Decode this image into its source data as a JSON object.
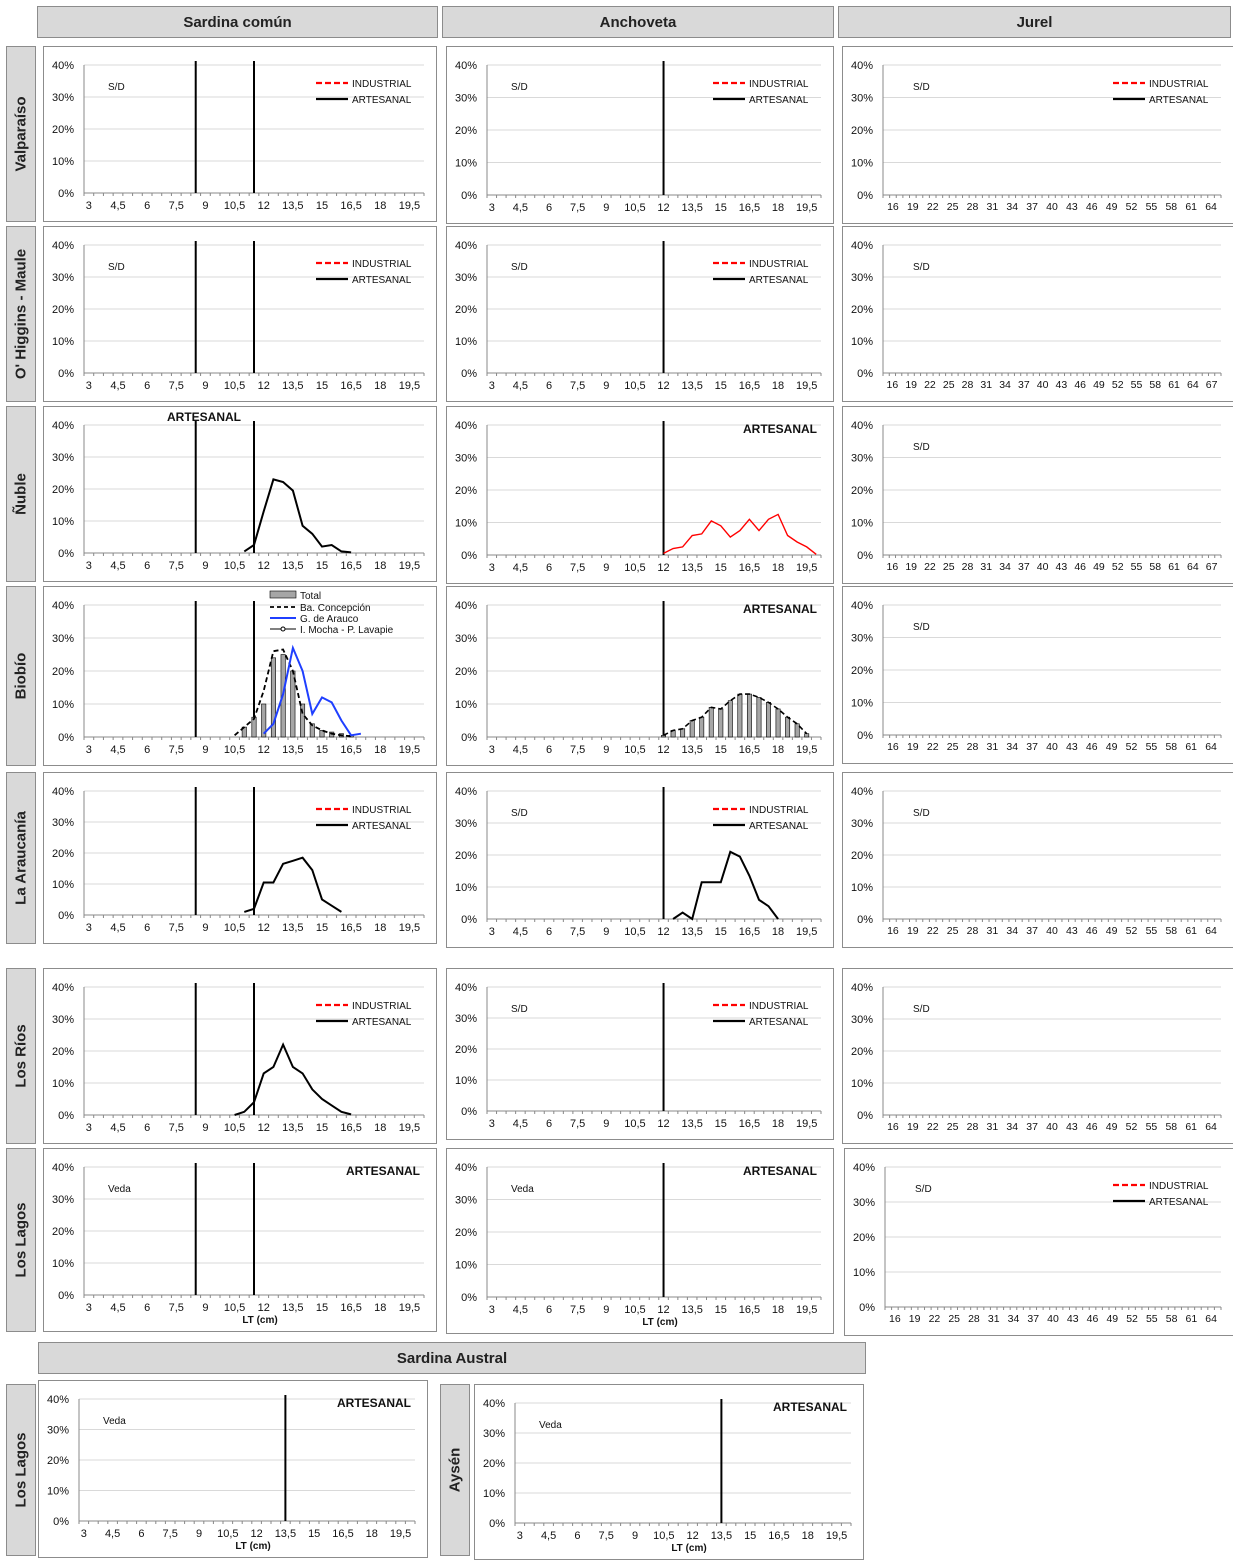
{
  "headers": {
    "sardina_comun": "Sardina común",
    "anchoveta": "Anchoveta",
    "jurel": "Jurel",
    "sardina_austral": "Sardina Austral"
  },
  "regions": {
    "valparaiso": "Valparaíso",
    "ohiggins_maule": "O' Higgins - Maule",
    "nuble": "Ñuble",
    "biobio": "Biobío",
    "araucania": "La Araucanía",
    "los_rios": "Los Ríos",
    "los_lagos": "Los Lagos",
    "los_lagos_austral": "Los Lagos",
    "aysen": "Aysén"
  },
  "colors": {
    "industrial": "#ff0000",
    "artesanal": "#000000",
    "anchoveta_nuble": "#ff0000",
    "arauco": "#1f3fff",
    "total_bar": "#a6a6a6",
    "grid": "#d9d9d9"
  },
  "axes": {
    "y_ticks": [
      "0%",
      "10%",
      "20%",
      "30%",
      "40%"
    ],
    "sardina_x_ticks": [
      "3",
      "4,5",
      "6",
      "7,5",
      "9",
      "10,5",
      "12",
      "13,5",
      "15",
      "16,5",
      "18",
      "19,5"
    ],
    "jurel_x_ticks_a": [
      "16",
      "19",
      "22",
      "25",
      "28",
      "31",
      "34",
      "37",
      "40",
      "43",
      "46",
      "49",
      "52",
      "55",
      "58",
      "61",
      "64"
    ],
    "jurel_x_ticks_b": [
      "16",
      "19",
      "22",
      "25",
      "28",
      "31",
      "34",
      "37",
      "40",
      "43",
      "46",
      "49",
      "52",
      "55",
      "58",
      "61",
      "64",
      "67"
    ],
    "xlabel": "LT (cm)"
  },
  "labels": {
    "industrial": "INDUSTRIAL",
    "artesanal": "ARTESANAL",
    "artesanal_title": "ARTESANAL",
    "sd": "S/D",
    "veda": "Veda",
    "total": "Total",
    "ba_concepcion": "Ba. Concepción",
    "g_arauco": "G. de Arauco",
    "i_mocha": "I. Mocha - P. Lavapie"
  },
  "chart_data": [
    {
      "id": "sc_valparaiso",
      "species": "Sardina común",
      "region": "Valparaíso",
      "type": "line",
      "note": "S/D",
      "ylim": [
        0,
        0.4
      ],
      "vlines": [
        8.5,
        11.5
      ],
      "series": [
        {
          "name": "INDUSTRIAL",
          "x": [],
          "y": []
        },
        {
          "name": "ARTESANAL",
          "x": [],
          "y": []
        }
      ]
    },
    {
      "id": "an_valparaiso",
      "species": "Anchoveta",
      "region": "Valparaíso",
      "type": "line",
      "note": "S/D",
      "ylim": [
        0,
        0.4
      ],
      "vlines": [
        12
      ],
      "series": [
        {
          "name": "INDUSTRIAL",
          "x": [],
          "y": []
        },
        {
          "name": "ARTESANAL",
          "x": [],
          "y": []
        }
      ]
    },
    {
      "id": "ju_valparaiso",
      "species": "Jurel",
      "region": "Valparaíso",
      "type": "line",
      "note": "S/D",
      "ylim": [
        0,
        0.4
      ],
      "series": [
        {
          "name": "INDUSTRIAL",
          "x": [],
          "y": []
        },
        {
          "name": "ARTESANAL",
          "x": [],
          "y": []
        }
      ]
    },
    {
      "id": "sc_ohiggins",
      "species": "Sardina común",
      "region": "O' Higgins - Maule",
      "type": "line",
      "note": "S/D",
      "ylim": [
        0,
        0.4
      ],
      "vlines": [
        8.5,
        11.5
      ],
      "series": [
        {
          "name": "INDUSTRIAL",
          "x": [],
          "y": []
        },
        {
          "name": "ARTESANAL",
          "x": [],
          "y": []
        }
      ]
    },
    {
      "id": "an_ohiggins",
      "species": "Anchoveta",
      "region": "O' Higgins - Maule",
      "type": "line",
      "note": "S/D",
      "ylim": [
        0,
        0.4
      ],
      "vlines": [
        12
      ],
      "series": [
        {
          "name": "INDUSTRIAL",
          "x": [],
          "y": []
        },
        {
          "name": "ARTESANAL",
          "x": [],
          "y": []
        }
      ]
    },
    {
      "id": "ju_ohiggins",
      "species": "Jurel",
      "region": "O' Higgins - Maule",
      "type": "line",
      "note": "S/D",
      "ylim": [
        0,
        0.4
      ],
      "series": []
    },
    {
      "id": "sc_nuble",
      "species": "Sardina común",
      "region": "Ñuble",
      "type": "line",
      "title": "ARTESANAL",
      "ylim": [
        0,
        0.4
      ],
      "vlines": [
        8.5,
        11.5
      ],
      "series": [
        {
          "name": "ARTESANAL",
          "x": [
            11,
            11.5,
            12,
            12.5,
            13,
            13.5,
            14,
            14.5,
            15,
            15.5,
            16,
            16.5
          ],
          "y": [
            0.005,
            0.025,
            0.13,
            0.23,
            0.222,
            0.195,
            0.085,
            0.06,
            0.02,
            0.025,
            0.005,
            0.002
          ]
        }
      ]
    },
    {
      "id": "an_nuble",
      "species": "Anchoveta",
      "region": "Ñuble",
      "type": "line",
      "title": "ARTESANAL",
      "ylim": [
        0,
        0.4
      ],
      "vlines": [
        12
      ],
      "series": [
        {
          "name": "ARTESANAL",
          "x": [
            12,
            12.5,
            13,
            13.5,
            14,
            14.5,
            15,
            15.5,
            16,
            16.5,
            17,
            17.5,
            18,
            18.5,
            19,
            19.5,
            20
          ],
          "y": [
            0.005,
            0.02,
            0.025,
            0.06,
            0.065,
            0.105,
            0.09,
            0.055,
            0.075,
            0.11,
            0.075,
            0.11,
            0.125,
            0.06,
            0.04,
            0.025,
            0.002
          ]
        }
      ]
    },
    {
      "id": "ju_nuble",
      "species": "Jurel",
      "region": "Ñuble",
      "type": "line",
      "note": "S/D",
      "ylim": [
        0,
        0.4
      ],
      "series": []
    },
    {
      "id": "sc_biobio",
      "species": "Sardina común",
      "region": "Biobío",
      "type": "bar+line",
      "ylim": [
        0,
        0.4
      ],
      "vlines": [
        8.5,
        11.5
      ],
      "bars": {
        "name": "Total",
        "x": [
          11,
          11.5,
          12,
          12.5,
          13,
          13.5,
          14,
          14.5,
          15,
          15.5,
          16,
          16.5
        ],
        "y": [
          0.03,
          0.06,
          0.1,
          0.24,
          0.25,
          0.2,
          0.1,
          0.04,
          0.02,
          0.015,
          0.01,
          0.005
        ]
      },
      "series": [
        {
          "name": "Ba. Concepción",
          "x": [
            10.5,
            11,
            11.5,
            12,
            12.5,
            13,
            13.5,
            14,
            14.5,
            15,
            15.5,
            16,
            16.5
          ],
          "y": [
            0.005,
            0.03,
            0.055,
            0.14,
            0.26,
            0.265,
            0.2,
            0.07,
            0.035,
            0.02,
            0.01,
            0.005,
            0.002
          ]
        },
        {
          "name": "G. de Arauco",
          "x": [
            12,
            12.5,
            13,
            13.5,
            14,
            14.5,
            15,
            15.5,
            16,
            16.5,
            17
          ],
          "y": [
            0.01,
            0.04,
            0.13,
            0.27,
            0.2,
            0.07,
            0.12,
            0.105,
            0.05,
            0.005,
            0.01
          ]
        },
        {
          "name": "I. Mocha - P. Lavapie",
          "x": [],
          "y": []
        }
      ]
    },
    {
      "id": "an_biobio",
      "species": "Anchoveta",
      "region": "Biobío",
      "type": "bar+line",
      "title": "ARTESANAL",
      "ylim": [
        0,
        0.4
      ],
      "vlines": [
        12
      ],
      "bars": {
        "name": "ARTESANAL",
        "x": [
          12,
          12.5,
          13,
          13.5,
          14,
          14.5,
          15,
          15.5,
          16,
          16.5,
          17,
          17.5,
          18,
          18.5,
          19,
          19.5
        ],
        "y": [
          0.005,
          0.02,
          0.025,
          0.05,
          0.06,
          0.09,
          0.085,
          0.11,
          0.13,
          0.13,
          0.12,
          0.105,
          0.085,
          0.06,
          0.04,
          0.01
        ]
      },
      "series": [
        {
          "name": "ARTESANAL",
          "x": [
            12,
            12.5,
            13,
            13.5,
            14,
            14.5,
            15,
            15.5,
            16,
            16.5,
            17,
            17.5,
            18,
            18.5,
            19,
            19.5
          ],
          "y": [
            0.005,
            0.02,
            0.025,
            0.05,
            0.06,
            0.09,
            0.085,
            0.11,
            0.13,
            0.13,
            0.12,
            0.105,
            0.085,
            0.06,
            0.04,
            0.01
          ]
        }
      ]
    },
    {
      "id": "ju_biobio",
      "species": "Jurel",
      "region": "Biobío",
      "type": "line",
      "note": "S/D",
      "ylim": [
        0,
        0.4
      ],
      "series": []
    },
    {
      "id": "sc_araucania",
      "species": "Sardina común",
      "region": "La Araucanía",
      "type": "line",
      "ylim": [
        0,
        0.4
      ],
      "vlines": [
        8.5,
        11.5
      ],
      "series": [
        {
          "name": "INDUSTRIAL",
          "x": [],
          "y": []
        },
        {
          "name": "ARTESANAL",
          "x": [
            11,
            11.5,
            12,
            12.5,
            13,
            13.5,
            14,
            14.5,
            15,
            15.5,
            16
          ],
          "y": [
            0.01,
            0.02,
            0.105,
            0.105,
            0.165,
            0.175,
            0.185,
            0.145,
            0.05,
            0.03,
            0.01
          ]
        }
      ]
    },
    {
      "id": "an_araucania",
      "species": "Anchoveta",
      "region": "La Araucanía",
      "type": "line",
      "note": "S/D",
      "ylim": [
        0,
        0.4
      ],
      "vlines": [
        12
      ],
      "series": [
        {
          "name": "INDUSTRIAL",
          "x": [],
          "y": []
        },
        {
          "name": "ARTESANAL",
          "x": [
            12.5,
            13,
            13.5,
            14,
            14.5,
            15,
            15.5,
            16,
            16.5,
            17,
            17.5,
            18
          ],
          "y": [
            0,
            0.02,
            0,
            0.115,
            0.115,
            0.115,
            0.21,
            0.195,
            0.135,
            0.06,
            0.04,
            0
          ]
        }
      ]
    },
    {
      "id": "ju_araucania",
      "species": "Jurel",
      "region": "La Araucanía",
      "type": "line",
      "note": "S/D",
      "ylim": [
        0,
        0.4
      ],
      "series": []
    },
    {
      "id": "sc_losrios",
      "species": "Sardina común",
      "region": "Los Ríos",
      "type": "line",
      "ylim": [
        0,
        0.4
      ],
      "vlines": [
        8.5,
        11.5
      ],
      "series": [
        {
          "name": "INDUSTRIAL",
          "x": [],
          "y": []
        },
        {
          "name": "ARTESANAL",
          "x": [
            10.5,
            11,
            11.5,
            12,
            12.5,
            13,
            13.5,
            14,
            14.5,
            15,
            15.5,
            16,
            16.5
          ],
          "y": [
            0.0,
            0.01,
            0.04,
            0.13,
            0.15,
            0.22,
            0.15,
            0.13,
            0.08,
            0.05,
            0.03,
            0.01,
            0.002
          ]
        }
      ]
    },
    {
      "id": "an_losrios",
      "species": "Anchoveta",
      "region": "Los Ríos",
      "type": "line",
      "note": "S/D",
      "ylim": [
        0,
        0.4
      ],
      "vlines": [
        12
      ],
      "series": [
        {
          "name": "INDUSTRIAL",
          "x": [],
          "y": []
        },
        {
          "name": "ARTESANAL",
          "x": [],
          "y": []
        }
      ]
    },
    {
      "id": "ju_losrios",
      "species": "Jurel",
      "region": "Los Ríos",
      "type": "line",
      "note": "S/D",
      "ylim": [
        0,
        0.4
      ],
      "series": []
    },
    {
      "id": "sc_loslagos",
      "species": "Sardina común",
      "region": "Los Lagos",
      "type": "line",
      "title": "ARTESANAL",
      "note": "Veda",
      "xlabel": "LT (cm)",
      "ylim": [
        0,
        0.4
      ],
      "vlines": [
        8.5,
        11.5
      ],
      "series": []
    },
    {
      "id": "an_loslagos",
      "species": "Anchoveta",
      "region": "Los Lagos",
      "type": "line",
      "title": "ARTESANAL",
      "note": "Veda",
      "xlabel": "LT (cm)",
      "ylim": [
        0,
        0.4
      ],
      "vlines": [
        12
      ],
      "series": []
    },
    {
      "id": "ju_loslagos",
      "species": "Jurel",
      "region": "Los Lagos",
      "type": "line",
      "note": "S/D",
      "ylim": [
        0,
        0.4
      ],
      "series": [
        {
          "name": "INDUSTRIAL",
          "x": [],
          "y": []
        },
        {
          "name": "ARTESANAL",
          "x": [],
          "y": []
        }
      ]
    },
    {
      "id": "sa_loslagos",
      "species": "Sardina Austral",
      "region": "Los Lagos",
      "type": "line",
      "title": "ARTESANAL",
      "note": "Veda",
      "xlabel": "LT (cm)",
      "ylim": [
        0,
        0.4
      ],
      "vlines": [
        13.5
      ],
      "series": []
    },
    {
      "id": "sa_aysen",
      "species": "Sardina Austral",
      "region": "Aysén",
      "type": "line",
      "title": "ARTESANAL",
      "note": "Veda",
      "xlabel": "LT (cm)",
      "ylim": [
        0,
        0.4
      ],
      "vlines": [
        13.5
      ],
      "series": []
    }
  ]
}
